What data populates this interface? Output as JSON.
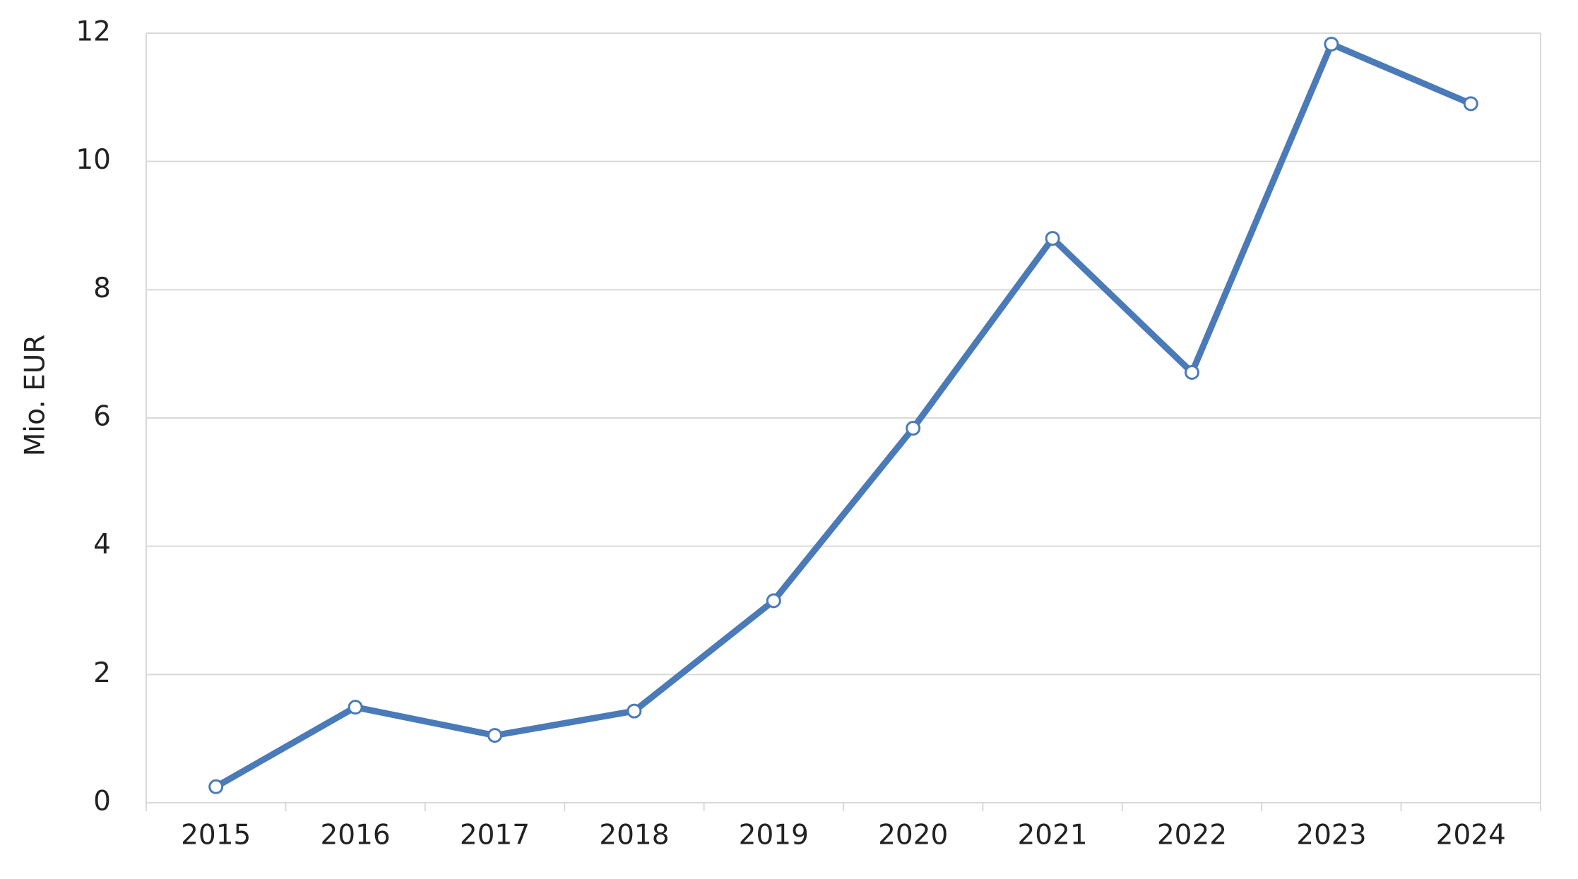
{
  "chart_data": {
    "type": "line",
    "ylabel": "Mio. EUR",
    "categories": [
      "2015",
      "2016",
      "2017",
      "2018",
      "2019",
      "2020",
      "2021",
      "2022",
      "2023",
      "2024"
    ],
    "values": [
      0.25,
      1.49,
      1.05,
      1.43,
      3.15,
      5.84,
      8.8,
      6.71,
      11.83,
      10.9
    ],
    "color": "#4a7ab8",
    "ylim": [
      0,
      12
    ],
    "yticks": [
      0,
      2,
      4,
      6,
      8,
      10,
      12
    ],
    "grid": true
  }
}
